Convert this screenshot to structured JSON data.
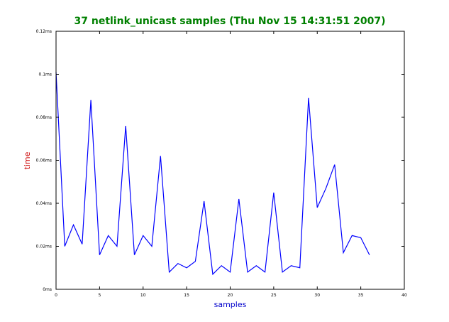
{
  "chart_data": {
    "type": "line",
    "title": "37 netlink_unicast samples (Thu Nov 15 14:31:51 2007)",
    "xlabel": "samples",
    "ylabel": "time",
    "xlim": [
      0,
      40
    ],
    "ylim": [
      0,
      0.12
    ],
    "x_ticks": [
      0,
      5,
      10,
      15,
      20,
      25,
      30,
      35,
      40
    ],
    "x_tick_labels": [
      "0",
      "5",
      "10",
      "15",
      "20",
      "25",
      "30",
      "35",
      "40"
    ],
    "y_ticks": [
      0,
      0.02,
      0.04,
      0.06,
      0.08,
      0.1,
      0.12
    ],
    "y_tick_labels": [
      "0ms",
      "0.02ms",
      "0.04ms",
      "0.06ms",
      "0.08ms",
      "0.1ms",
      "0.12ms"
    ],
    "grid": false,
    "line_color": "#0000ff",
    "title_color": "#008000",
    "xlabel_color": "#0000cc",
    "ylabel_color": "#cc0000",
    "series": [
      {
        "x": [
          0,
          1,
          2,
          3,
          4,
          5,
          6,
          7,
          8,
          9,
          10,
          11,
          12,
          13,
          14,
          15,
          16,
          17,
          18,
          19,
          20,
          21,
          22,
          23,
          24,
          25,
          26,
          27,
          28,
          29,
          30,
          31,
          32,
          33,
          34,
          35,
          36
        ],
        "values": [
          0.101,
          0.02,
          0.03,
          0.021,
          0.088,
          0.016,
          0.025,
          0.02,
          0.076,
          0.016,
          0.025,
          0.02,
          0.062,
          0.008,
          0.012,
          0.01,
          0.013,
          0.041,
          0.007,
          0.011,
          0.008,
          0.042,
          0.008,
          0.011,
          0.008,
          0.045,
          0.008,
          0.011,
          0.01,
          0.089,
          0.038,
          0.047,
          0.058,
          0.017,
          0.025,
          0.024,
          0.016
        ]
      }
    ]
  }
}
